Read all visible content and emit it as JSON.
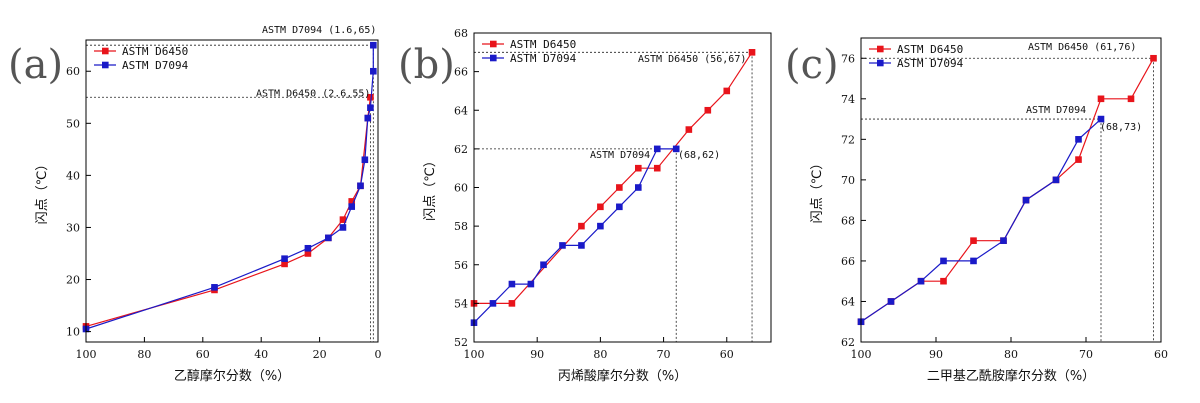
{
  "colors": {
    "d6450": "#e8141b",
    "d7094": "#1a1ac8"
  },
  "chart_data": [
    {
      "panel_label": "(a)",
      "type": "line",
      "xlabel": "乙醇摩尔分数（%）",
      "ylabel": "闪点（℃）",
      "xlim": [
        100,
        0
      ],
      "ylim": [
        8,
        66
      ],
      "xticks": [
        100,
        80,
        60,
        40,
        20,
        0
      ],
      "yticks": [
        10,
        20,
        30,
        40,
        50,
        60
      ],
      "legend": [
        "ASTM D6450",
        "ASTM D7094"
      ],
      "legend_position": "top-left",
      "series": [
        {
          "name": "ASTM D6450",
          "color": "#e8141b",
          "x": [
            100,
            56,
            32,
            24,
            17,
            12,
            9,
            6,
            3.5,
            2.6
          ],
          "y": [
            11,
            18,
            23,
            25,
            28,
            31.5,
            35,
            38,
            51,
            55
          ]
        },
        {
          "name": "ASTM D7094",
          "color": "#1a1ac8",
          "x": [
            100,
            56,
            32,
            24,
            17,
            12,
            9,
            6,
            4.5,
            3.5,
            2.6,
            1.6,
            1.6
          ],
          "y": [
            10.5,
            18.5,
            24,
            26,
            28,
            30,
            34,
            38,
            43,
            51,
            53,
            60,
            65
          ]
        }
      ],
      "annotations": [
        {
          "text": "ASTM D7094 (1.6,65)",
          "x": 1.6,
          "y": 65
        },
        {
          "text": "ASTM D6450 (2.6,55)",
          "x": 2.6,
          "y": 55
        }
      ]
    },
    {
      "panel_label": "(b)",
      "type": "line",
      "xlabel": "丙烯酸摩尔分数（%）",
      "ylabel": "闪点（℃）",
      "xlim": [
        100,
        53
      ],
      "ylim": [
        52,
        68
      ],
      "xticks": [
        100,
        90,
        80,
        70,
        60
      ],
      "yticks": [
        52,
        54,
        56,
        58,
        60,
        62,
        64,
        66,
        68
      ],
      "legend": [
        "ASTM D6450",
        "ASTM D7094"
      ],
      "legend_position": "top-left",
      "series": [
        {
          "name": "ASTM D6450",
          "color": "#e8141b",
          "x": [
            100,
            94,
            83,
            80,
            77,
            74,
            71,
            66,
            63,
            60,
            56
          ],
          "y": [
            54,
            54,
            58,
            59,
            60,
            61,
            61,
            63,
            64,
            65,
            67
          ]
        },
        {
          "name": "ASTM D7094",
          "color": "#1a1ac8",
          "x": [
            100,
            97,
            94,
            91,
            89,
            86,
            83,
            80,
            77,
            74,
            71,
            68
          ],
          "y": [
            53,
            54,
            55,
            55,
            56,
            57,
            57,
            58,
            59,
            60,
            62,
            62
          ]
        }
      ],
      "annotations": [
        {
          "text": "ASTM D6450 (56,67)",
          "x": 56,
          "y": 67
        },
        {
          "text": "ASTM D7094",
          "x": 68,
          "y": 62
        },
        {
          "text": "(68,62)",
          "x": 68,
          "y": 62
        }
      ]
    },
    {
      "panel_label": "(c)",
      "type": "line",
      "xlabel": "二甲基乙酰胺摩尔分数（%）",
      "ylabel": "闪点（℃）",
      "xlim": [
        100,
        60
      ],
      "ylim": [
        62,
        77
      ],
      "xticks": [
        100,
        90,
        80,
        70,
        60
      ],
      "yticks": [
        62,
        64,
        66,
        68,
        70,
        72,
        74,
        76
      ],
      "legend": [
        "ASTM D6450",
        "ASTM D7094"
      ],
      "legend_position": "top-left",
      "series": [
        {
          "name": "ASTM D6450",
          "color": "#e8141b",
          "x": [
            100,
            96,
            92,
            89,
            85,
            81,
            78,
            74,
            71,
            68,
            64,
            61
          ],
          "y": [
            63,
            64,
            65,
            65,
            67,
            67,
            69,
            70,
            71,
            74,
            74,
            76
          ]
        },
        {
          "name": "ASTM D7094",
          "color": "#1a1ac8",
          "x": [
            100,
            96,
            92,
            89,
            85,
            81,
            78,
            74,
            71,
            68
          ],
          "y": [
            63,
            64,
            65,
            66,
            66,
            67,
            69,
            70,
            72,
            73
          ]
        }
      ],
      "annotations": [
        {
          "text": "ASTM D6450 (61,76)",
          "x": 61,
          "y": 76
        },
        {
          "text": "ASTM D7094",
          "x": 68,
          "y": 73
        },
        {
          "text": "(68,73)",
          "x": 68,
          "y": 73
        }
      ]
    }
  ]
}
